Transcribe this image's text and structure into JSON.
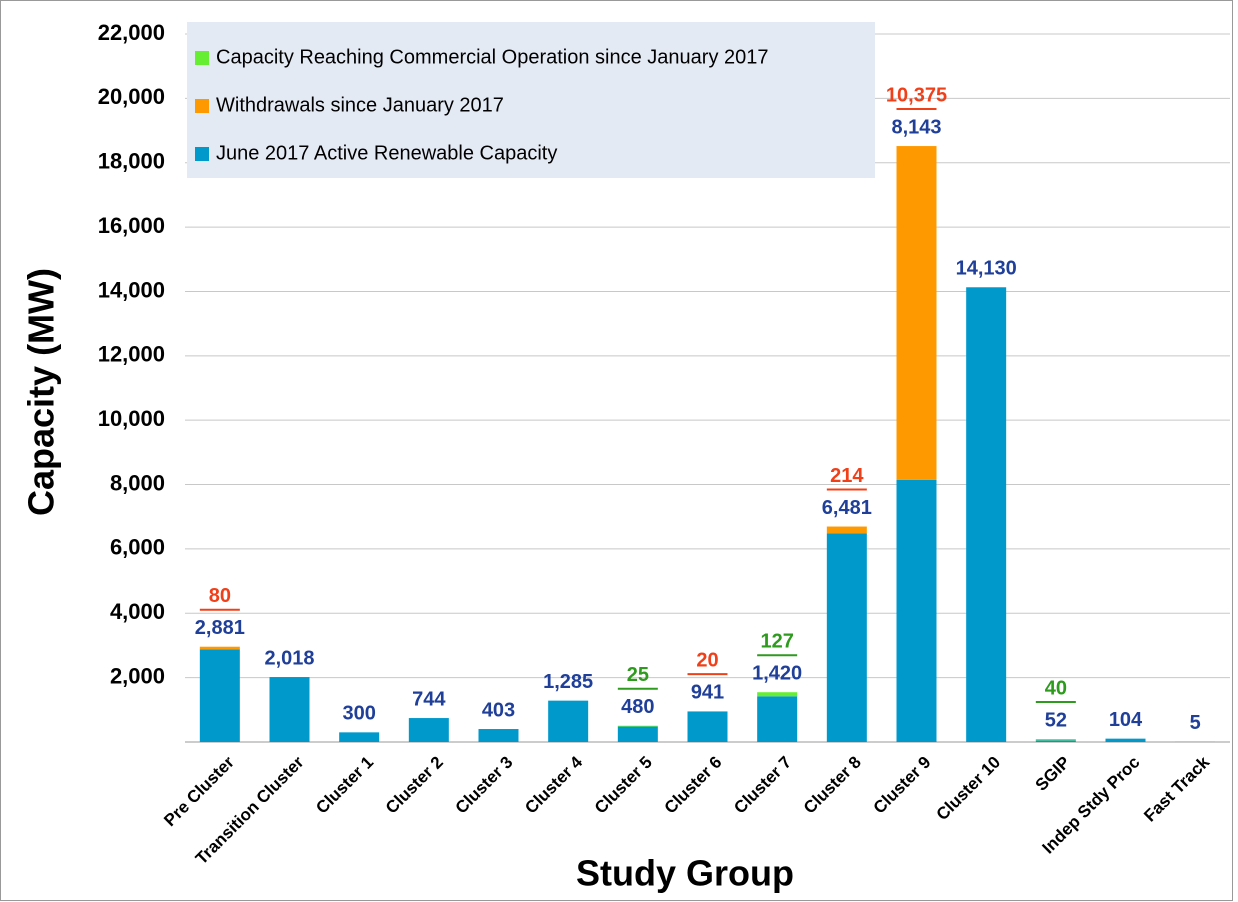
{
  "chart_data": {
    "type": "stacked_bar",
    "x_label": "Study Group",
    "y_label": "Capacity (MW)",
    "categories": [
      "Pre Cluster",
      "Transition Cluster",
      "Cluster 1",
      "Cluster 2",
      "Cluster 3",
      "Cluster 4",
      "Cluster 5",
      "Cluster 6",
      "Cluster 7",
      "Cluster 8",
      "Cluster 9",
      "Cluster 10",
      "SGIP",
      "Indep Stdy Proc",
      "Fast Track"
    ],
    "series": [
      {
        "name": "Capacity Reaching Commercial Operation since January 2017",
        "color": "#66ee33",
        "label_color": "#2e9a1e",
        "values": [
          null,
          null,
          null,
          null,
          null,
          null,
          25,
          null,
          127,
          null,
          null,
          null,
          40,
          null,
          null
        ]
      },
      {
        "name": "Withdrawals since January 2017",
        "color": "#ff9900",
        "label_color": "#f0401a",
        "values": [
          80,
          null,
          null,
          null,
          null,
          null,
          null,
          20,
          null,
          214,
          10375,
          null,
          null,
          null,
          null
        ],
        "value_labels": [
          "80",
          null,
          null,
          null,
          null,
          null,
          null,
          "20",
          null,
          "214",
          "10,375",
          null,
          null,
          null,
          null
        ]
      },
      {
        "name": "June 2017 Active Renewable Capacity",
        "color": "#0099cc",
        "label_color": "#1f3f99",
        "values": [
          2881,
          2018,
          300,
          744,
          403,
          1285,
          480,
          941,
          1420,
          6481,
          8143,
          14130,
          52,
          104,
          5
        ],
        "value_labels": [
          "2,881",
          "2,018",
          "300",
          "744",
          "403",
          "1,285",
          "480",
          "941",
          "1,420",
          "6,481",
          "8,143",
          "14,130",
          "52",
          "104",
          "5"
        ]
      }
    ],
    "ylim": [
      0,
      22000
    ],
    "yticks": [
      {
        "value": 2000,
        "label": "2,000"
      },
      {
        "value": 4000,
        "label": "4,000"
      },
      {
        "value": 6000,
        "label": "6,000"
      },
      {
        "value": 8000,
        "label": "8,000"
      },
      {
        "value": 10000,
        "label": "10,000"
      },
      {
        "value": 12000,
        "label": "12,000"
      },
      {
        "value": 14000,
        "label": "14,000"
      },
      {
        "value": 16000,
        "label": "16,000"
      },
      {
        "value": 18000,
        "label": "18,000"
      },
      {
        "value": 20000,
        "label": "20,000"
      },
      {
        "value": 22000,
        "label": "22,000"
      }
    ],
    "grid": true,
    "legend": "top-left"
  }
}
